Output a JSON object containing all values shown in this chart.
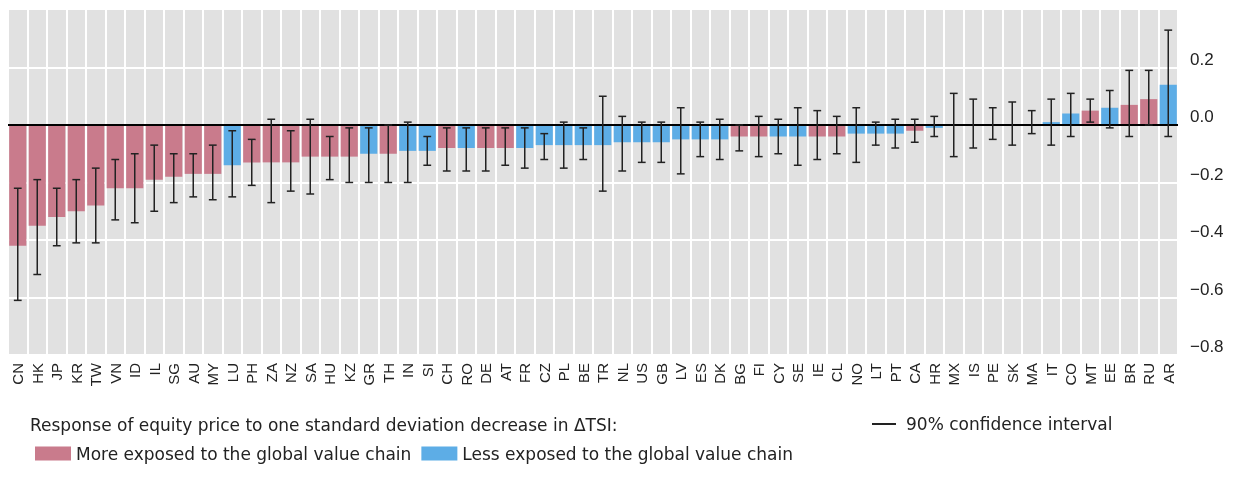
{
  "chart_data": {
    "type": "bar",
    "legend_title": "Response of equity price to one standard deviation decrease in ΔTSI:",
    "categories": [
      "CN",
      "HK",
      "JP",
      "KR",
      "TW",
      "VN",
      "ID",
      "IL",
      "SG",
      "AU",
      "MY",
      "LU",
      "PH",
      "ZA",
      "NZ",
      "SA",
      "HU",
      "KZ",
      "GR",
      "TH",
      "IN",
      "SI",
      "CH",
      "RO",
      "DE",
      "AT",
      "FR",
      "CZ",
      "PL",
      "BE",
      "TR",
      "NL",
      "US",
      "GB",
      "LV",
      "ES",
      "DK",
      "BG",
      "FI",
      "CY",
      "SE",
      "IE",
      "CL",
      "NO",
      "LT",
      "PT",
      "CA",
      "HR",
      "MX",
      "IS",
      "PE",
      "SK",
      "MA",
      "IT",
      "CO",
      "MT",
      "EE",
      "BR",
      "RU",
      "AR"
    ],
    "series": [
      {
        "name": "More exposed to the global value chain",
        "color": "#c97b8c",
        "values": [
          -0.42,
          -0.35,
          -0.32,
          -0.3,
          -0.28,
          -0.22,
          -0.22,
          -0.19,
          -0.18,
          -0.17,
          -0.17,
          null,
          -0.13,
          -0.13,
          -0.13,
          -0.11,
          -0.11,
          -0.11,
          null,
          -0.1,
          null,
          null,
          -0.08,
          null,
          -0.08,
          -0.08,
          null,
          null,
          null,
          null,
          null,
          null,
          null,
          null,
          null,
          null,
          null,
          -0.04,
          -0.04,
          null,
          null,
          -0.04,
          -0.04,
          null,
          null,
          null,
          -0.02,
          null,
          null,
          null,
          null,
          null,
          null,
          null,
          null,
          0.05,
          null,
          0.07,
          0.09,
          null
        ],
        "errors": [
          [
            -0.61,
            -0.22
          ],
          [
            -0.52,
            -0.19
          ],
          [
            -0.42,
            -0.22
          ],
          [
            -0.41,
            -0.19
          ],
          [
            -0.41,
            -0.15
          ],
          [
            -0.33,
            -0.12
          ],
          [
            -0.34,
            -0.1
          ],
          [
            -0.3,
            -0.07
          ],
          [
            -0.27,
            -0.1
          ],
          [
            -0.25,
            -0.1
          ],
          [
            -0.26,
            -0.07
          ],
          null,
          [
            -0.21,
            -0.05
          ],
          [
            -0.27,
            0.02
          ],
          [
            -0.23,
            -0.02
          ],
          [
            -0.24,
            0.02
          ],
          [
            -0.19,
            -0.04
          ],
          [
            -0.2,
            -0.01
          ],
          null,
          [
            -0.2,
            0
          ],
          null,
          null,
          [
            -0.16,
            -0.01
          ],
          null,
          [
            -0.16,
            -0.01
          ],
          [
            -0.14,
            -0.01
          ],
          null,
          null,
          null,
          null,
          null,
          null,
          null,
          null,
          null,
          null,
          null,
          [
            -0.09,
            0
          ],
          [
            -0.11,
            0.03
          ],
          null,
          null,
          [
            -0.12,
            0.05
          ],
          [
            -0.1,
            0.03
          ],
          null,
          null,
          null,
          [
            -0.06,
            0.02
          ],
          null,
          null,
          null,
          null,
          null,
          null,
          null,
          null,
          [
            0.01,
            0.09
          ],
          null,
          [
            -0.04,
            0.19
          ],
          [
            0,
            0.19
          ],
          null
        ]
      },
      {
        "name": "Less exposed to the global value chain",
        "color": "#5dade6",
        "values": [
          null,
          null,
          null,
          null,
          null,
          null,
          null,
          null,
          null,
          null,
          null,
          -0.14,
          null,
          null,
          null,
          null,
          null,
          null,
          -0.1,
          null,
          -0.09,
          -0.09,
          null,
          -0.08,
          null,
          null,
          -0.08,
          -0.07,
          -0.07,
          -0.07,
          -0.07,
          -0.06,
          -0.06,
          -0.06,
          -0.05,
          -0.05,
          -0.05,
          null,
          null,
          -0.04,
          -0.04,
          null,
          null,
          -0.03,
          -0.03,
          -0.03,
          null,
          -0.01,
          0,
          0,
          0,
          0,
          0,
          0.01,
          0.04,
          null,
          0.06,
          null,
          null,
          0.14
        ],
        "errors": [
          null,
          null,
          null,
          null,
          null,
          null,
          null,
          null,
          null,
          null,
          null,
          [
            -0.25,
            -0.02
          ],
          null,
          null,
          null,
          null,
          null,
          null,
          [
            -0.2,
            -0.01
          ],
          null,
          [
            -0.2,
            0.01
          ],
          [
            -0.14,
            -0.04
          ],
          null,
          [
            -0.16,
            -0.01
          ],
          null,
          null,
          [
            -0.15,
            -0.01
          ],
          [
            -0.12,
            -0.03
          ],
          [
            -0.15,
            0.01
          ],
          [
            -0.12,
            -0.01
          ],
          [
            -0.23,
            0.1
          ],
          [
            -0.16,
            0.03
          ],
          [
            -0.13,
            0.01
          ],
          [
            -0.13,
            0.01
          ],
          [
            -0.17,
            0.06
          ],
          [
            -0.11,
            0.01
          ],
          [
            -0.12,
            0.02
          ],
          null,
          null,
          [
            -0.1,
            0.02
          ],
          [
            -0.14,
            0.06
          ],
          null,
          null,
          [
            -0.13,
            0.06
          ],
          [
            -0.07,
            0.01
          ],
          [
            -0.08,
            0.02
          ],
          null,
          [
            -0.04,
            0.03
          ],
          [
            -0.11,
            0.11
          ],
          [
            -0.08,
            0.09
          ],
          [
            -0.05,
            0.06
          ],
          [
            -0.07,
            0.08
          ],
          [
            -0.03,
            0.05
          ],
          [
            -0.07,
            0.09
          ],
          [
            -0.04,
            0.11
          ],
          null,
          [
            -0.01,
            0.12
          ],
          null,
          null,
          [
            -0.04,
            0.33
          ]
        ]
      }
    ],
    "ylim": [
      -0.8,
      0.4
    ],
    "yticks": [
      {
        "value": -0.8,
        "label": "−0.8"
      },
      {
        "value": -0.6,
        "label": "−0.6"
      },
      {
        "value": -0.4,
        "label": "−0.4"
      },
      {
        "value": -0.2,
        "label": "−0.2"
      },
      {
        "value": 0,
        "label": "0.0"
      },
      0.2
    ],
    "ref_lines": [
      {
        "axis": "y",
        "value": 0,
        "color": "#000000"
      }
    ],
    "annotations": [
      "90% confidence interval"
    ],
    "grid": true,
    "legend": "bottom left"
  }
}
